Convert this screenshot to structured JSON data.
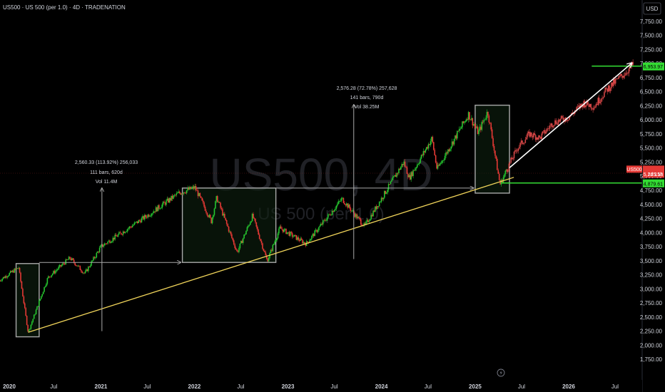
{
  "header": {
    "title": "US500 · US 500 (per 1.0) · 4D · TRADENATION"
  },
  "currency_button": "USD",
  "watermark": {
    "symbol": "US500, 4D",
    "description": "US 500 (per 1.0)"
  },
  "price_tags": {
    "symbol_tag": "US500",
    "current_price": "5,125.13",
    "countdown": "2d 15h",
    "support_price": "4,879.61",
    "target_price": "6,953.97"
  },
  "notes": {
    "first": [
      "2,560.33 (113.92%) 256,033",
      "111 bars, 620d",
      "Vol 11.4M"
    ],
    "second": [
      "2,576.28 (72.78%) 257,628",
      "141 bars, 790d",
      "Vol 38.25M"
    ]
  },
  "colors": {
    "background": "#000000",
    "up": "#26c62f",
    "down": "#e53935",
    "projection": "#d24545",
    "trendline": "#f0d45a",
    "support": "#33dd33",
    "arrow": "#ffffff",
    "box_border": "#a9a9a9",
    "box_fill": "#0e2310"
  },
  "chart_data": {
    "type": "candlestick",
    "title": "US500 · US 500 (per 1.0) · 4D · TRADENATION",
    "y_axis": {
      "unit": "USD",
      "ticks": [
        "1,750.00",
        "2,000.00",
        "2,250.00",
        "2,500.00",
        "2,750.00",
        "3,000.00",
        "3,250.00",
        "3,500.00",
        "3,750.00",
        "4,000.00",
        "4,250.00",
        "4,500.00",
        "4,750.00",
        "5,000.00",
        "5,250.00",
        "5,500.00",
        "5,750.00",
        "6,000.00",
        "6,250.00",
        "6,500.00",
        "6,750.00",
        "7,000.00",
        "7,250.00",
        "7,500.00",
        "7,750.00"
      ],
      "range": [
        1550,
        7950
      ]
    },
    "x_axis": {
      "ticks": [
        "2020",
        "Jul",
        "2021",
        "Jul",
        "2022",
        "Jul",
        "2023",
        "Jul",
        "2024",
        "Jul",
        "2025",
        "Jul",
        "2026",
        "Jul"
      ],
      "tick_dates": [
        "2020-01-01",
        "2020-07-01",
        "2021-01-01",
        "2021-07-01",
        "2022-01-01",
        "2022-07-01",
        "2023-01-01",
        "2023-07-01",
        "2024-01-01",
        "2024-07-01",
        "2025-01-01",
        "2025-07-01",
        "2026-01-01",
        "2026-07-01"
      ]
    },
    "price_path": [
      [
        "2019-12-01",
        3150
      ],
      [
        "2020-02-15",
        3380
      ],
      [
        "2020-03-23",
        2230
      ],
      [
        "2020-06-08",
        3200
      ],
      [
        "2020-09-02",
        3550
      ],
      [
        "2020-10-30",
        3270
      ],
      [
        "2021-01-01",
        3750
      ],
      [
        "2021-06-30",
        4300
      ],
      [
        "2021-11-01",
        4700
      ],
      [
        "2022-01-03",
        4800
      ],
      [
        "2022-03-08",
        4200
      ],
      [
        "2022-03-29",
        4620
      ],
      [
        "2022-06-17",
        3650
      ],
      [
        "2022-08-16",
        4300
      ],
      [
        "2022-10-12",
        3500
      ],
      [
        "2022-12-01",
        4080
      ],
      [
        "2023-03-13",
        3800
      ],
      [
        "2023-07-31",
        4600
      ],
      [
        "2023-10-27",
        4110
      ],
      [
        "2024-03-28",
        5250
      ],
      [
        "2024-04-19",
        4970
      ],
      [
        "2024-07-16",
        5670
      ],
      [
        "2024-08-05",
        5120
      ],
      [
        "2024-12-06",
        6100
      ],
      [
        "2025-01-13",
        5770
      ],
      [
        "2025-02-19",
        6150
      ],
      [
        "2025-04-08",
        4850
      ],
      [
        "2025-05-05",
        5125
      ]
    ],
    "projection_path": [
      [
        "2025-05-05",
        5125
      ],
      [
        "2025-06-15",
        5500
      ],
      [
        "2025-08-01",
        5750
      ],
      [
        "2025-09-10",
        5680
      ],
      [
        "2025-11-01",
        5950
      ],
      [
        "2026-01-01",
        6050
      ],
      [
        "2026-03-01",
        6300
      ],
      [
        "2026-04-10",
        6240
      ],
      [
        "2026-06-01",
        6550
      ],
      [
        "2026-08-01",
        6800
      ],
      [
        "2026-09-10",
        6980
      ]
    ],
    "annotations": {
      "trendline": [
        [
          "2020-03-23",
          2230
        ],
        [
          "2025-06-01",
          4980
        ]
      ],
      "support_level": [
        [
          "2025-04-15",
          4879.61
        ],
        [
          "2026-10-01",
          4879.61
        ]
      ],
      "target_level": [
        [
          "2026-04-01",
          6953.97
        ],
        [
          "2026-09-15",
          6953.97
        ]
      ],
      "white_arrow": [
        [
          "2025-05-15",
          5150
        ],
        [
          "2026-09-05",
          7010
        ]
      ],
      "boxes": [
        {
          "x": [
            "2020-02-05",
            "2020-05-05"
          ],
          "y": [
            2150,
            3450
          ]
        },
        {
          "x": [
            "2021-11-15",
            "2022-11-15"
          ],
          "y": [
            3470,
            4790
          ]
        },
        {
          "x": [
            "2025-01-01",
            "2025-05-15"
          ],
          "y": [
            4700,
            6260
          ]
        }
      ],
      "measure_arrows": [
        {
          "x": "2021-01-05",
          "y": [
            2250,
            4790
          ]
        },
        {
          "x": "2023-09-15",
          "y": [
            3530,
            6270
          ]
        }
      ],
      "connectors": [
        {
          "x": [
            "2020-05-05",
            "2021-11-15"
          ],
          "y": 3470
        },
        {
          "x": [
            "2022-11-15",
            "2025-01-01"
          ],
          "y": 4790
        }
      ]
    },
    "grid": false,
    "legend": "none"
  }
}
